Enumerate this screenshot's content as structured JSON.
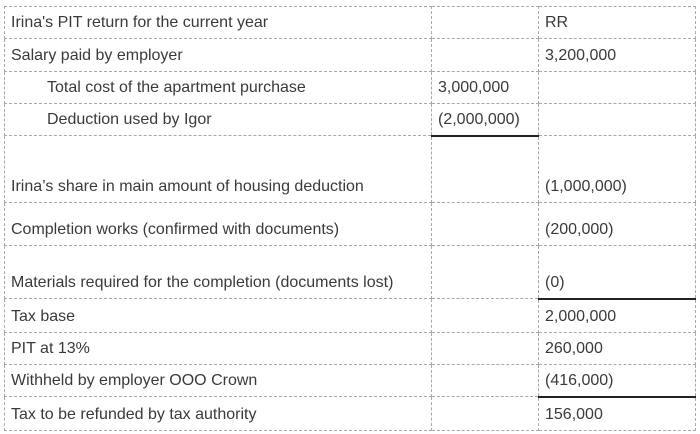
{
  "table": {
    "rows": [
      {
        "label": "Irina's PIT return for the current year",
        "mid": "",
        "right": "RR"
      },
      {
        "label": "Salary paid by employer",
        "mid": "",
        "right": "3,200,000"
      },
      {
        "label": "Total cost of the apartment purchase",
        "mid": "3,000,000",
        "right": ""
      },
      {
        "label": "Deduction used by Igor",
        "mid": "(2,000,000)",
        "right": ""
      },
      {
        "label": "Irina’s share in main amount of housing deduction",
        "mid": "",
        "right": "(1,000,000)"
      },
      {
        "label": "Completion works (confirmed with documents)",
        "mid": "",
        "right": "(200,000)"
      },
      {
        "label": "Materials required for the completion (documents lost)",
        "mid": "",
        "right": "(0)"
      },
      {
        "label": "Tax base",
        "mid": "",
        "right": "2,000,000"
      },
      {
        "label": "PIT at 13%",
        "mid": "",
        "right": "260,000"
      },
      {
        "label": "Withheld by employer OOO Crown",
        "mid": "",
        "right": "(416,000)"
      },
      {
        "label": "Tax to be refunded by tax authority",
        "mid": "",
        "right": "156,000"
      }
    ]
  }
}
